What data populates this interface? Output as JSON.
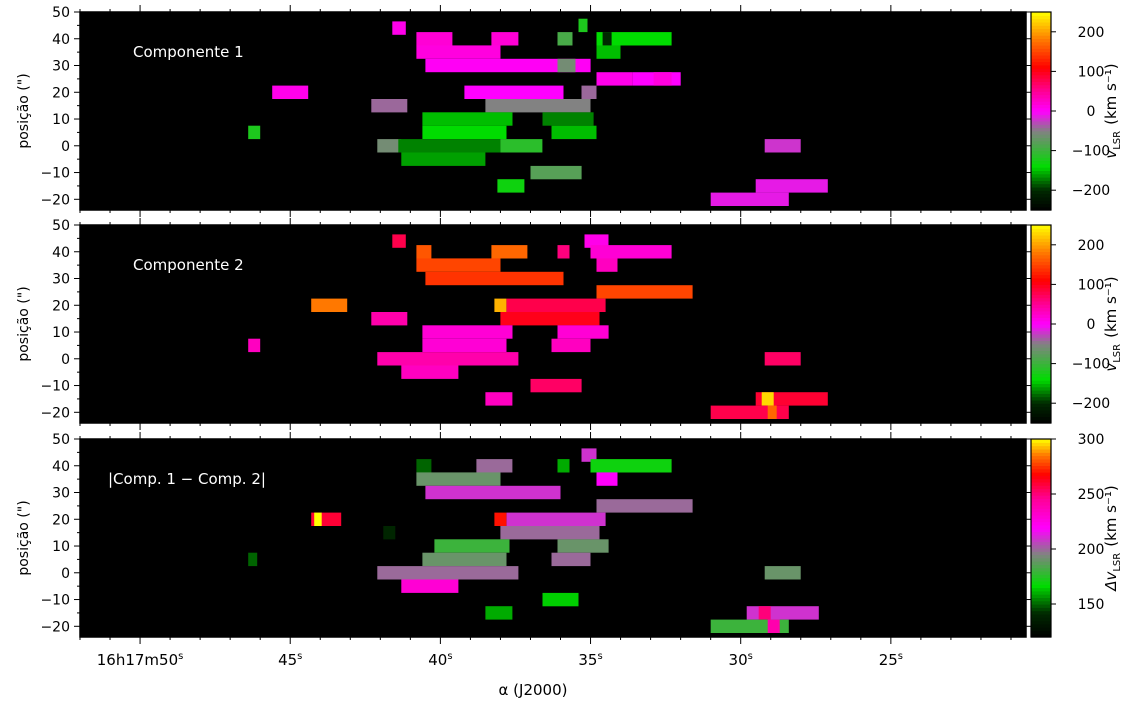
{
  "figure": {
    "xlabel": "α (J2000)",
    "xticks": [
      {
        "value": 50,
        "label": "50",
        "prefix": "16h17m"
      },
      {
        "value": 45,
        "label": "45"
      },
      {
        "value": 40,
        "label": "40"
      },
      {
        "value": 35,
        "label": "35"
      },
      {
        "value": 30,
        "label": "30"
      },
      {
        "value": 25,
        "label": "25"
      }
    ],
    "xticks_unit": "s",
    "xlim": [
      52.0,
      20.5
    ],
    "ylim": [
      -24,
      50
    ],
    "yticks": [
      -20,
      -10,
      0,
      10,
      20,
      30,
      40,
      50
    ],
    "ylabel": "posição (\")",
    "colors": {
      "background": "#000000",
      "frame": "#000000"
    }
  },
  "chart_data": [
    {
      "type": "heatmap",
      "annotation": "Componente 1",
      "colorbar": {
        "label_main": "v",
        "label_sub": "LSR",
        "label_unit": "(km s⁻¹)",
        "range": [
          -250,
          250
        ],
        "ticks": [
          -200,
          -100,
          0,
          100,
          200
        ],
        "tick_labels": [
          "−200",
          "−100",
          "0",
          "100",
          "200"
        ]
      },
      "cells": [
        {
          "x": 41.6,
          "y": 44,
          "w": 0.45,
          "v": 10
        },
        {
          "x": 35.4,
          "y": 45,
          "w": 0.3,
          "v": -120
        },
        {
          "x": 40.8,
          "y": 40,
          "w": 1.2,
          "v": 20
        },
        {
          "x": 38.3,
          "y": 40,
          "w": 0.9,
          "v": 20
        },
        {
          "x": 36.1,
          "y": 40,
          "w": 0.5,
          "v": -90
        },
        {
          "x": 34.8,
          "y": 40,
          "w": 2.5,
          "v": -140
        },
        {
          "x": 34.6,
          "y": 40,
          "w": 0.3,
          "v": -200
        },
        {
          "x": 40.8,
          "y": 35,
          "w": 2.8,
          "v": 15
        },
        {
          "x": 34.8,
          "y": 35,
          "w": 0.8,
          "v": -150
        },
        {
          "x": 40.5,
          "y": 30,
          "w": 5.5,
          "v": 5
        },
        {
          "x": 36.1,
          "y": 30,
          "w": 0.6,
          "v": -60
        },
        {
          "x": 34.8,
          "y": 25,
          "w": 1.2,
          "v": 10
        },
        {
          "x": 33.6,
          "y": 25,
          "w": 1.6,
          "v": 0
        },
        {
          "x": 32.9,
          "y": 25,
          "w": 0.6,
          "v": 15
        },
        {
          "x": 45.6,
          "y": 20,
          "w": 1.2,
          "v": 10
        },
        {
          "x": 39.2,
          "y": 20,
          "w": 3.3,
          "v": 0
        },
        {
          "x": 35.3,
          "y": 20,
          "w": 0.5,
          "v": -40
        },
        {
          "x": 42.3,
          "y": 15,
          "w": 1.2,
          "v": -40
        },
        {
          "x": 38.5,
          "y": 15,
          "w": 3.5,
          "v": -50
        },
        {
          "x": 40.6,
          "y": 10,
          "w": 3.0,
          "v": -150
        },
        {
          "x": 36.6,
          "y": 10,
          "w": 1.7,
          "v": -170
        },
        {
          "x": 46.4,
          "y": 5,
          "w": 0.4,
          "v": -120
        },
        {
          "x": 40.6,
          "y": 5,
          "w": 2.8,
          "v": -140
        },
        {
          "x": 36.3,
          "y": 5,
          "w": 1.5,
          "v": -150
        },
        {
          "x": 42.1,
          "y": 0,
          "w": 0.8,
          "v": -60
        },
        {
          "x": 41.4,
          "y": 0,
          "w": 3.4,
          "v": -170
        },
        {
          "x": 38.0,
          "y": 0,
          "w": 1.4,
          "v": -110
        },
        {
          "x": 41.3,
          "y": -5,
          "w": 2.8,
          "v": -160
        },
        {
          "x": 37.0,
          "y": -10,
          "w": 1.7,
          "v": -80
        },
        {
          "x": 38.1,
          "y": -15,
          "w": 0.9,
          "v": -130
        },
        {
          "x": 29.5,
          "y": -15,
          "w": 2.4,
          "v": -10
        },
        {
          "x": 29.2,
          "y": 0,
          "w": 1.2,
          "v": -20
        },
        {
          "x": 31.0,
          "y": -20,
          "w": 2.6,
          "v": -10
        }
      ]
    },
    {
      "type": "heatmap",
      "annotation": "Componente 2",
      "colorbar": {
        "label_main": "v",
        "label_sub": "LSR",
        "label_unit": "(km s⁻¹)",
        "range": [
          -250,
          250
        ],
        "ticks": [
          -200,
          -100,
          0,
          100,
          200
        ],
        "tick_labels": [
          "−200",
          "−100",
          "0",
          "100",
          "200"
        ]
      },
      "cells": [
        {
          "x": 41.6,
          "y": 44,
          "w": 0.45,
          "v": 80
        },
        {
          "x": 35.2,
          "y": 44,
          "w": 0.8,
          "v": 10
        },
        {
          "x": 40.8,
          "y": 40,
          "w": 0.5,
          "v": 160
        },
        {
          "x": 38.3,
          "y": 40,
          "w": 1.2,
          "v": 170
        },
        {
          "x": 36.1,
          "y": 40,
          "w": 0.4,
          "v": 60
        },
        {
          "x": 35.0,
          "y": 40,
          "w": 2.7,
          "v": 20
        },
        {
          "x": 40.8,
          "y": 35,
          "w": 2.8,
          "v": 150
        },
        {
          "x": 34.8,
          "y": 35,
          "w": 0.7,
          "v": 30
        },
        {
          "x": 40.5,
          "y": 30,
          "w": 4.6,
          "v": 140
        },
        {
          "x": 34.8,
          "y": 25,
          "w": 3.2,
          "v": 150
        },
        {
          "x": 44.3,
          "y": 20,
          "w": 1.2,
          "v": 180
        },
        {
          "x": 38.2,
          "y": 20,
          "w": 0.4,
          "v": 210
        },
        {
          "x": 37.8,
          "y": 20,
          "w": 3.3,
          "v": 80
        },
        {
          "x": 42.3,
          "y": 15,
          "w": 1.2,
          "v": 40
        },
        {
          "x": 38.0,
          "y": 15,
          "w": 3.3,
          "v": 100
        },
        {
          "x": 40.6,
          "y": 10,
          "w": 3.0,
          "v": 20
        },
        {
          "x": 36.1,
          "y": 10,
          "w": 1.7,
          "v": 20
        },
        {
          "x": 46.4,
          "y": 5,
          "w": 0.4,
          "v": 30
        },
        {
          "x": 40.6,
          "y": 5,
          "w": 2.8,
          "v": 20
        },
        {
          "x": 36.3,
          "y": 5,
          "w": 1.3,
          "v": 30
        },
        {
          "x": 42.1,
          "y": 0,
          "w": 4.7,
          "v": 40
        },
        {
          "x": 29.2,
          "y": 0,
          "w": 1.2,
          "v": 70
        },
        {
          "x": 41.3,
          "y": -5,
          "w": 1.9,
          "v": 30
        },
        {
          "x": 37.0,
          "y": -10,
          "w": 1.7,
          "v": 70
        },
        {
          "x": 38.5,
          "y": -15,
          "w": 0.9,
          "v": 30
        },
        {
          "x": 29.5,
          "y": -15,
          "w": 2.4,
          "v": 90
        },
        {
          "x": 29.3,
          "y": -15,
          "w": 0.4,
          "v": 230
        },
        {
          "x": 31.0,
          "y": -20,
          "w": 2.6,
          "v": 80
        },
        {
          "x": 29.1,
          "y": -20,
          "w": 0.3,
          "v": 170
        }
      ]
    },
    {
      "type": "heatmap",
      "annotation": "|Comp. 1 − Comp. 2|",
      "colorbar": {
        "label_main": "Δv",
        "label_sub": "LSR",
        "label_unit": "(km s⁻¹)",
        "range": [
          120,
          300
        ],
        "ticks": [
          150,
          200,
          250,
          300
        ],
        "tick_labels": [
          "150",
          "200",
          "250",
          "300"
        ]
      },
      "cells": [
        {
          "x": 35.3,
          "y": 44,
          "w": 0.5,
          "v": 210
        },
        {
          "x": 40.8,
          "y": 40,
          "w": 0.5,
          "v": 150
        },
        {
          "x": 38.8,
          "y": 40,
          "w": 1.2,
          "v": 200
        },
        {
          "x": 36.1,
          "y": 40,
          "w": 0.4,
          "v": 160
        },
        {
          "x": 35.0,
          "y": 40,
          "w": 2.7,
          "v": 170
        },
        {
          "x": 40.8,
          "y": 35,
          "w": 2.8,
          "v": 190
        },
        {
          "x": 34.8,
          "y": 35,
          "w": 0.7,
          "v": 220
        },
        {
          "x": 40.5,
          "y": 30,
          "w": 4.5,
          "v": 210
        },
        {
          "x": 34.8,
          "y": 25,
          "w": 3.2,
          "v": 200
        },
        {
          "x": 44.3,
          "y": 20,
          "w": 1.0,
          "v": 260
        },
        {
          "x": 44.2,
          "y": 20,
          "w": 0.25,
          "v": 300
        },
        {
          "x": 38.2,
          "y": 20,
          "w": 0.4,
          "v": 270
        },
        {
          "x": 37.8,
          "y": 20,
          "w": 3.3,
          "v": 210
        },
        {
          "x": 41.9,
          "y": 15,
          "w": 0.4,
          "v": 140
        },
        {
          "x": 38.0,
          "y": 15,
          "w": 3.3,
          "v": 200
        },
        {
          "x": 40.2,
          "y": 10,
          "w": 2.5,
          "v": 180
        },
        {
          "x": 36.1,
          "y": 10,
          "w": 1.7,
          "v": 190
        },
        {
          "x": 46.4,
          "y": 5,
          "w": 0.3,
          "v": 150
        },
        {
          "x": 40.6,
          "y": 5,
          "w": 2.8,
          "v": 190
        },
        {
          "x": 36.3,
          "y": 5,
          "w": 1.3,
          "v": 200
        },
        {
          "x": 42.1,
          "y": 0,
          "w": 4.7,
          "v": 200
        },
        {
          "x": 29.2,
          "y": 0,
          "w": 1.2,
          "v": 190
        },
        {
          "x": 41.3,
          "y": -5,
          "w": 1.9,
          "v": 230
        },
        {
          "x": 36.6,
          "y": -10,
          "w": 1.2,
          "v": 165
        },
        {
          "x": 38.5,
          "y": -15,
          "w": 0.9,
          "v": 160
        },
        {
          "x": 29.8,
          "y": -15,
          "w": 2.4,
          "v": 210
        },
        {
          "x": 29.4,
          "y": -15,
          "w": 0.4,
          "v": 250
        },
        {
          "x": 31.0,
          "y": -20,
          "w": 2.6,
          "v": 180
        },
        {
          "x": 29.1,
          "y": -20,
          "w": 0.4,
          "v": 240
        }
      ]
    }
  ]
}
